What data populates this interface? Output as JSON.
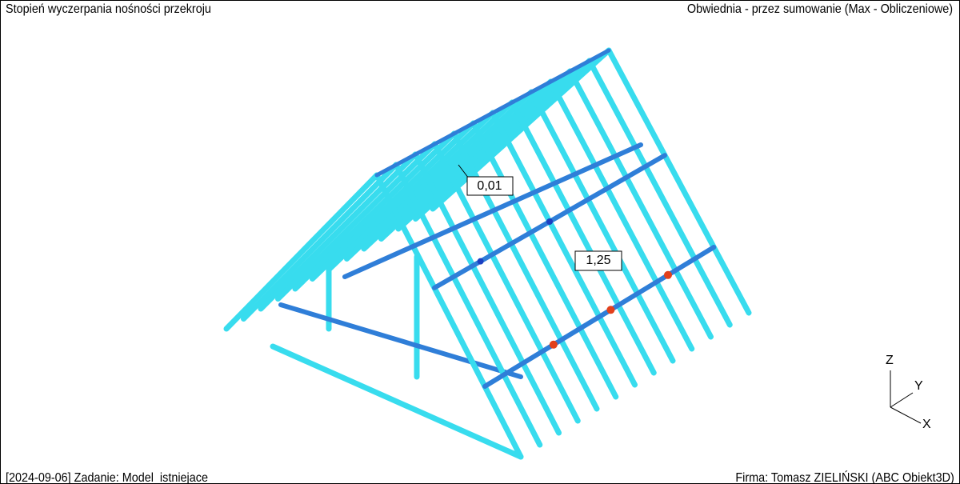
{
  "header": {
    "left": "Stopień wyczerpania nośności przekroju",
    "right": "Obwiednia - przez sumowanie (Max - Obliczeniowe)"
  },
  "labels": [
    "0,01",
    "1,25"
  ],
  "axes": {
    "z": "Z",
    "y": "Y",
    "x": "X"
  },
  "footer": {
    "left": "[2024-09-06] Zadanie: Model_istniejace",
    "right": "Firma: Tomasz ZIELIŃSKI (ABC Obiekt3D)"
  }
}
